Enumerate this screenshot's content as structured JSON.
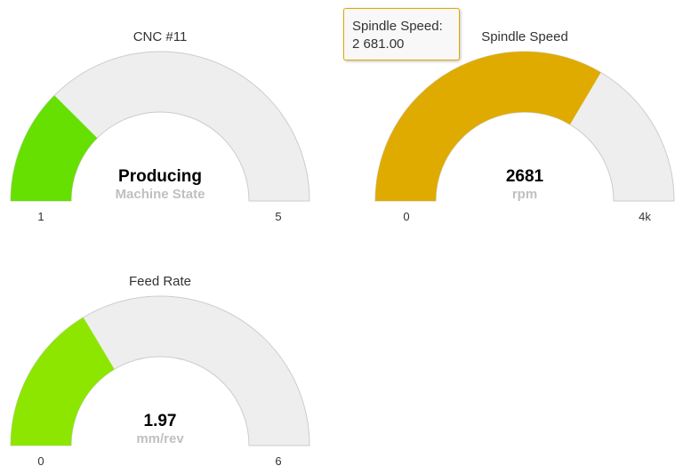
{
  "chart_data": [
    {
      "type": "gauge",
      "title": "CNC #11",
      "value_label": "Producing",
      "unit": "Machine State",
      "value": 2,
      "min": 1,
      "max": 5,
      "min_label": "1",
      "max_label": "5",
      "color": "#66e000"
    },
    {
      "type": "gauge",
      "title": "Spindle Speed",
      "value_label": "2681",
      "unit": "rpm",
      "value": 2681,
      "min": 0,
      "max": 4000,
      "min_label": "0",
      "max_label": "4k",
      "color": "#e0ab00"
    },
    {
      "type": "gauge",
      "title": "Feed Rate",
      "value_label": "1.97",
      "unit": "mm/rev",
      "value": 1.97,
      "min": 0,
      "max": 6,
      "min_label": "0",
      "max_label": "6",
      "color": "#8ce600"
    }
  ],
  "tooltip": {
    "series": "Spindle Speed:",
    "value": "2 681.00",
    "border_color": "#e0ab00"
  },
  "colors": {
    "background_band": "#eeeeee",
    "band_border": "#cccccc"
  }
}
